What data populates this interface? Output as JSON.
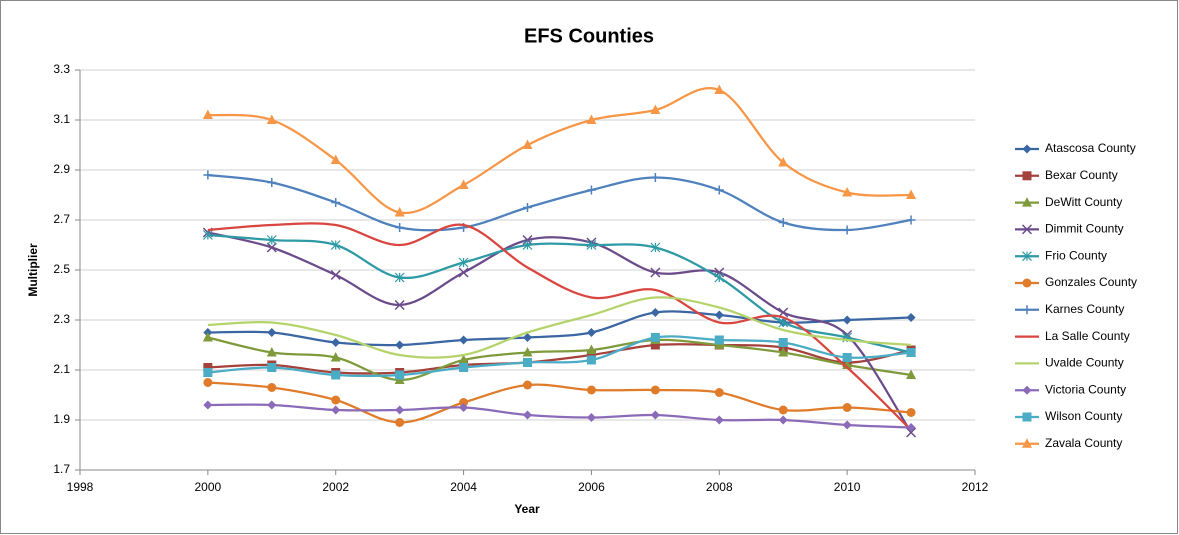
{
  "chart_data": {
    "type": "line",
    "title": "EFS Counties",
    "x_label": "Year",
    "y_label": "Multiplier",
    "x": [
      2000,
      2001,
      2002,
      2003,
      2004,
      2005,
      2006,
      2007,
      2008,
      2009,
      2010,
      2011
    ],
    "xlim": [
      1998,
      2012
    ],
    "xticks": [
      1998,
      2000,
      2002,
      2004,
      2006,
      2008,
      2010,
      2012
    ],
    "ylim": [
      1.7,
      3.3
    ],
    "yticks": [
      1.7,
      1.9,
      2.1,
      2.3,
      2.5,
      2.7,
      2.9,
      3.1,
      3.3
    ],
    "grid": true,
    "smooth": true,
    "legend": "right",
    "series": [
      {
        "name": "Atascosa County",
        "color": "#3a66a3",
        "marker": "diamond",
        "values": [
          2.25,
          2.25,
          2.21,
          2.2,
          2.22,
          2.23,
          2.25,
          2.33,
          2.32,
          2.29,
          2.3,
          2.31
        ]
      },
      {
        "name": "Bexar County",
        "color": "#a5413c",
        "marker": "square",
        "values": [
          2.11,
          2.12,
          2.09,
          2.09,
          2.12,
          2.13,
          2.16,
          2.2,
          2.2,
          2.19,
          2.13,
          2.18
        ]
      },
      {
        "name": "DeWitt County",
        "color": "#7f9a3b",
        "marker": "triangle",
        "values": [
          2.23,
          2.17,
          2.15,
          2.06,
          2.14,
          2.17,
          2.18,
          2.22,
          2.2,
          2.17,
          2.12,
          2.08
        ]
      },
      {
        "name": "Dimmit County",
        "color": "#6b4b8a",
        "marker": "x",
        "values": [
          2.65,
          2.59,
          2.48,
          2.36,
          2.49,
          2.62,
          2.61,
          2.49,
          2.49,
          2.33,
          2.24,
          1.85
        ]
      },
      {
        "name": "Frio County",
        "color": "#2e9aa5",
        "marker": "star",
        "values": [
          2.64,
          2.62,
          2.6,
          2.47,
          2.53,
          2.6,
          2.6,
          2.59,
          2.47,
          2.29,
          2.23,
          2.17
        ]
      },
      {
        "name": "Gonzales County",
        "color": "#e07b2a",
        "marker": "circle",
        "values": [
          2.05,
          2.03,
          1.98,
          1.89,
          1.97,
          2.04,
          2.02,
          2.02,
          2.01,
          1.94,
          1.95,
          1.93
        ]
      },
      {
        "name": "Karnes County",
        "color": "#4f81bd",
        "marker": "plus",
        "values": [
          2.88,
          2.85,
          2.77,
          2.67,
          2.67,
          2.75,
          2.82,
          2.87,
          2.82,
          2.69,
          2.66,
          2.7
        ]
      },
      {
        "name": "La Salle County",
        "color": "#d9453f",
        "marker": "none",
        "values": [
          2.66,
          2.68,
          2.68,
          2.6,
          2.68,
          2.51,
          2.39,
          2.42,
          2.29,
          2.31,
          2.11,
          1.86
        ]
      },
      {
        "name": "Uvalde County",
        "color": "#b5d36b",
        "marker": "none",
        "values": [
          2.28,
          2.29,
          2.24,
          2.16,
          2.16,
          2.25,
          2.32,
          2.39,
          2.35,
          2.26,
          2.22,
          2.2
        ]
      },
      {
        "name": "Victoria County",
        "color": "#8b6bb8",
        "marker": "diamond",
        "values": [
          1.96,
          1.96,
          1.94,
          1.94,
          1.95,
          1.92,
          1.91,
          1.92,
          1.9,
          1.9,
          1.88,
          1.87
        ]
      },
      {
        "name": "Wilson County",
        "color": "#4bacc6",
        "marker": "square",
        "values": [
          2.09,
          2.11,
          2.08,
          2.08,
          2.11,
          2.13,
          2.14,
          2.23,
          2.22,
          2.21,
          2.15,
          2.17
        ]
      },
      {
        "name": "Zavala County",
        "color": "#f79646",
        "marker": "triangle",
        "values": [
          3.12,
          3.1,
          2.94,
          2.73,
          2.84,
          3.0,
          3.1,
          3.14,
          3.22,
          2.93,
          2.81,
          2.8
        ]
      }
    ]
  }
}
